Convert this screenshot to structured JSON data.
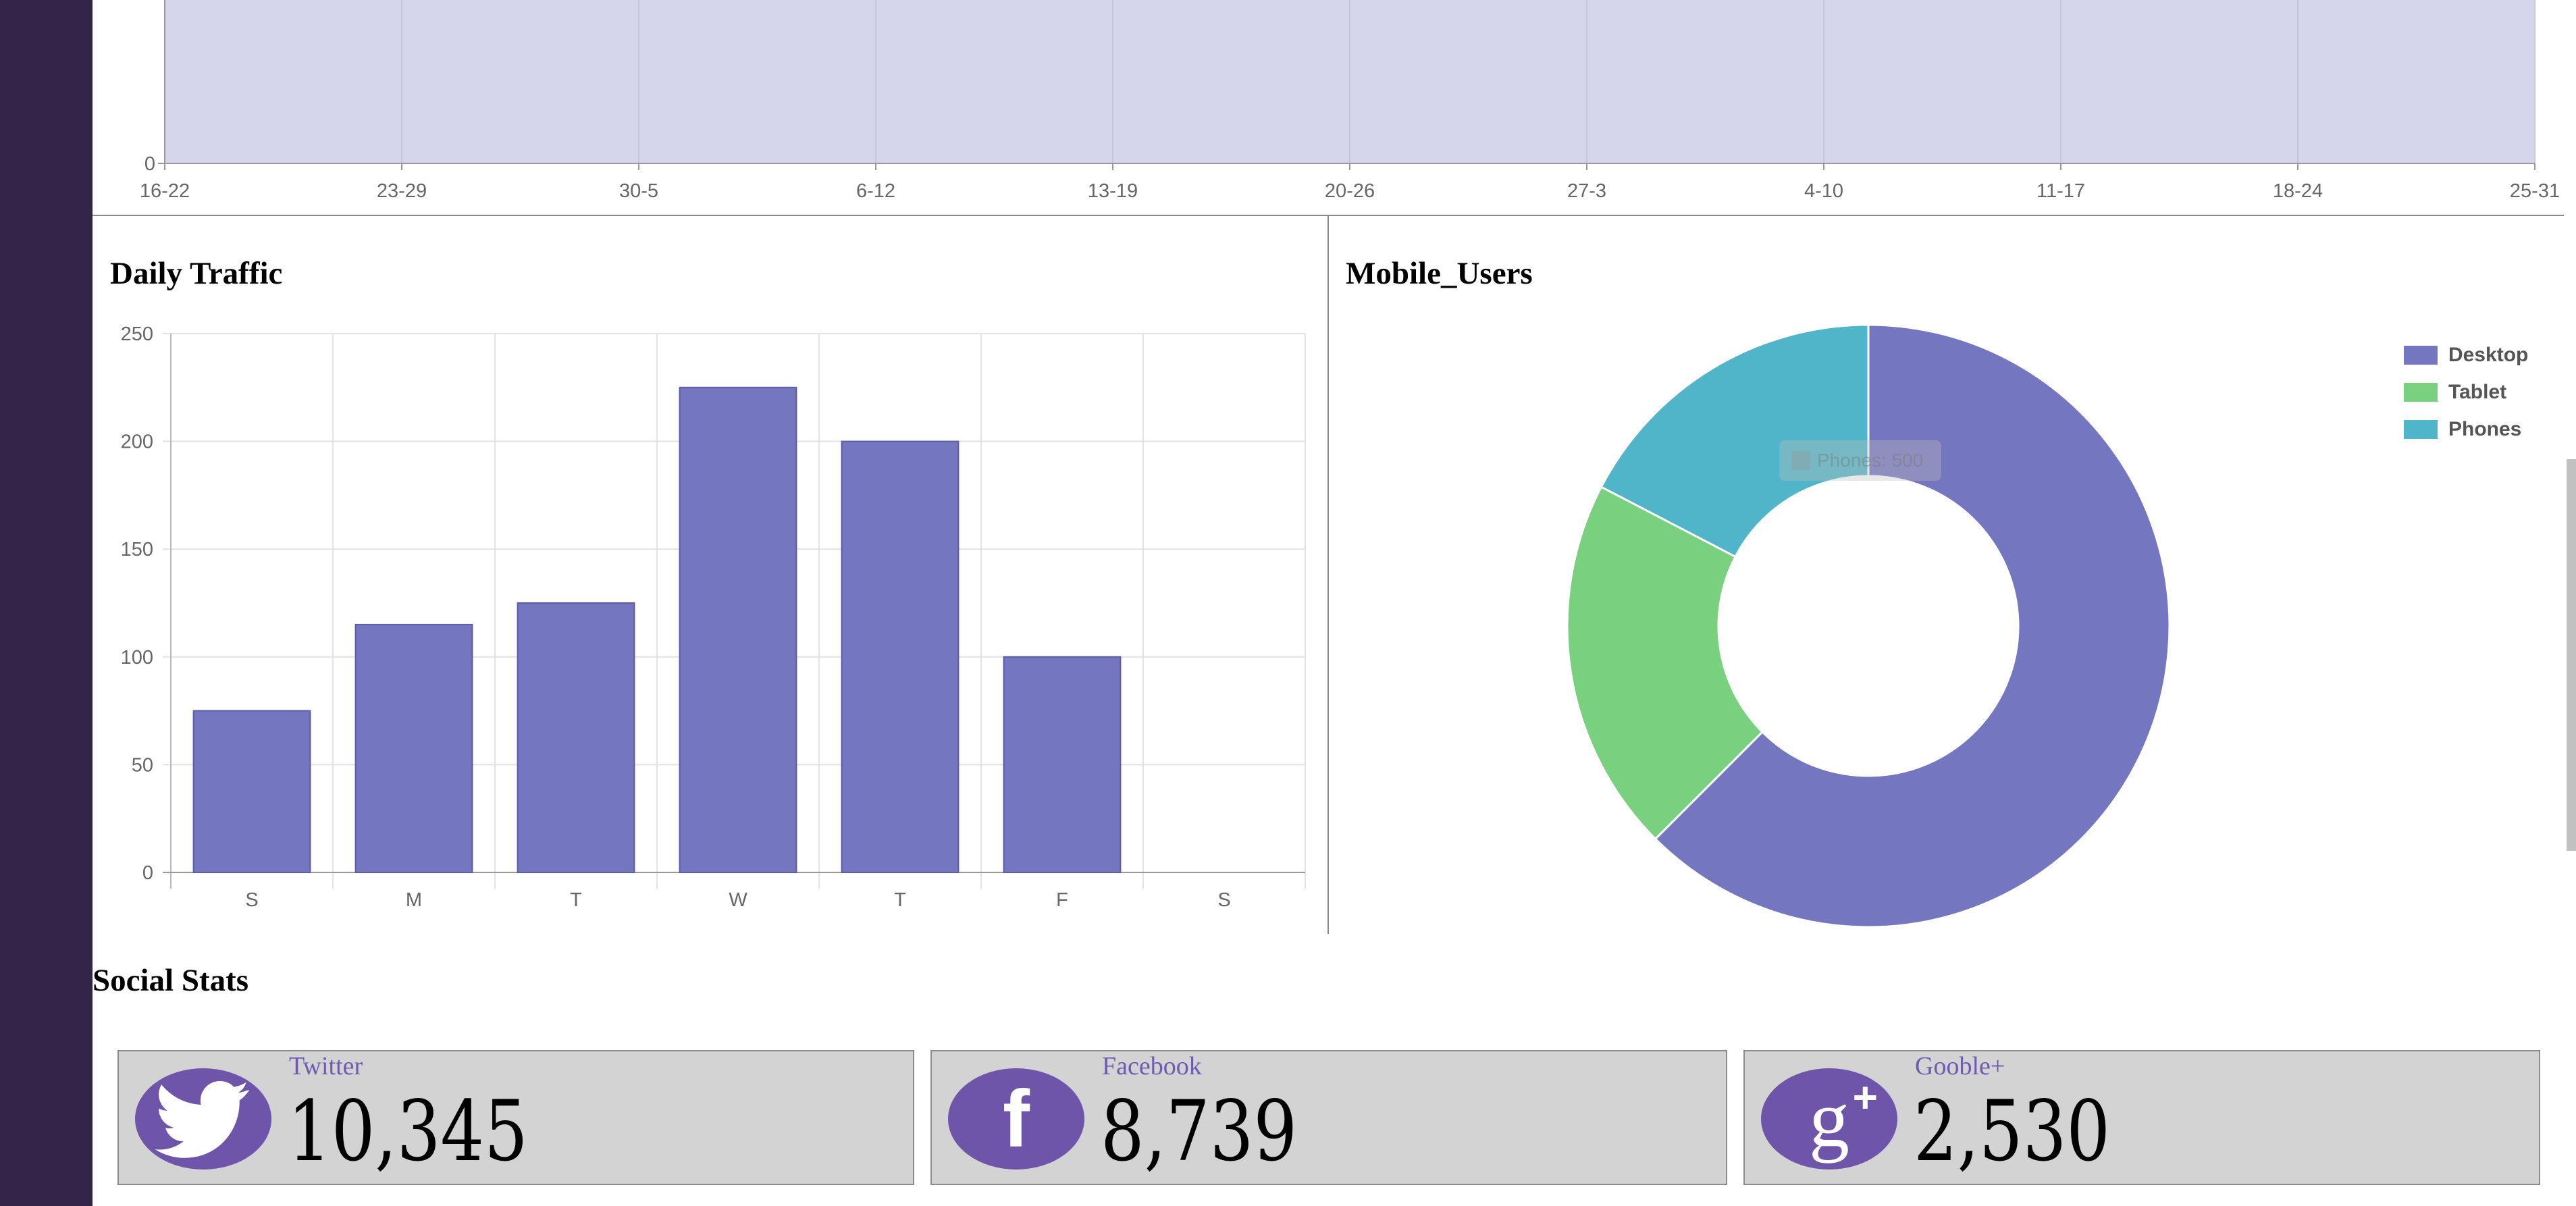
{
  "sidebar": {
    "bg": "#33244a"
  },
  "weekly_chart": {
    "chart_data": {
      "type": "area",
      "categories": [
        "16-22",
        "23-29",
        "30-5",
        "6-12",
        "13-19",
        "20-26",
        "27-3",
        "4-10",
        "11-17",
        "18-24",
        "25-31"
      ],
      "y_tick_visible": "0",
      "fill": "#d5d6eb"
    }
  },
  "daily_traffic": {
    "title": "Daily Traffic",
    "chart_data": {
      "type": "bar",
      "categories": [
        "S",
        "M",
        "T",
        "W",
        "T",
        "F",
        "S"
      ],
      "values": [
        75,
        115,
        125,
        225,
        200,
        100,
        0
      ],
      "ylim": [
        0,
        250
      ],
      "yticks": [
        "0",
        "50",
        "100",
        "150",
        "200",
        "250"
      ],
      "grid": true,
      "color": "#7576c0"
    }
  },
  "mobile_users": {
    "title": "Mobile_Users",
    "chart_data": {
      "type": "pie",
      "categories": [
        "Desktop",
        "Tablet",
        "Phones"
      ],
      "values": [
        1800,
        580,
        500
      ],
      "colors": [
        "#7576c0",
        "#79d07f",
        "#50b5c8"
      ],
      "legend_position": "top-right"
    },
    "tooltip": {
      "text": "Phones: 500"
    }
  },
  "social_stats": {
    "title": "Social Stats",
    "cards": [
      {
        "name": "Twitter",
        "count": "10,345",
        "icon": "twitter-bird-icon"
      },
      {
        "name": "Facebook",
        "count": "8,739",
        "icon": "facebook-f-icon"
      },
      {
        "name": "Gooble+",
        "count": "2,530",
        "icon": "google-plus-icon"
      }
    ],
    "icon_color": "#6f55aa"
  }
}
